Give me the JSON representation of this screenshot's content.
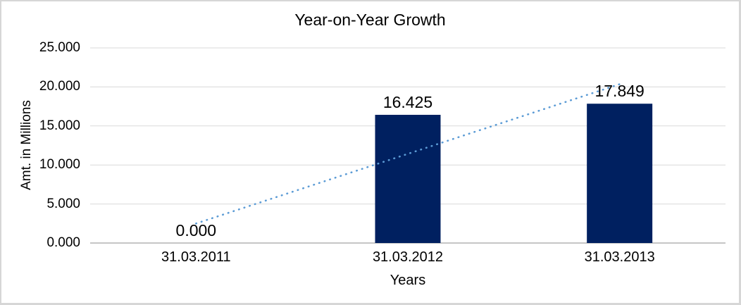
{
  "chart_data": {
    "type": "bar",
    "title": "Year-on-Year Growth",
    "xlabel": "Years",
    "ylabel": "Amt. in Millions",
    "categories": [
      "31.03.2011",
      "31.03.2012",
      "31.03.2013"
    ],
    "values": [
      0,
      16.425,
      17.849
    ],
    "value_labels": [
      "0.000",
      "16.425",
      "17.849"
    ],
    "ylim": [
      0,
      25
    ],
    "ytick_step": 5,
    "ytick_labels": [
      "0.000",
      "5.000",
      "10.000",
      "15.000",
      "20.000",
      "25.000"
    ],
    "grid": "horizontal",
    "legend": "none",
    "bar_color": "#002060",
    "gridline_color": "#d9d9d9",
    "axis_line_color": "#b3b3b3",
    "text_color": "#000000",
    "trendline": {
      "type": "linear",
      "style": "dotted",
      "color": "#5b9bd5",
      "endpoints": [
        2.5,
        20.35
      ]
    }
  }
}
